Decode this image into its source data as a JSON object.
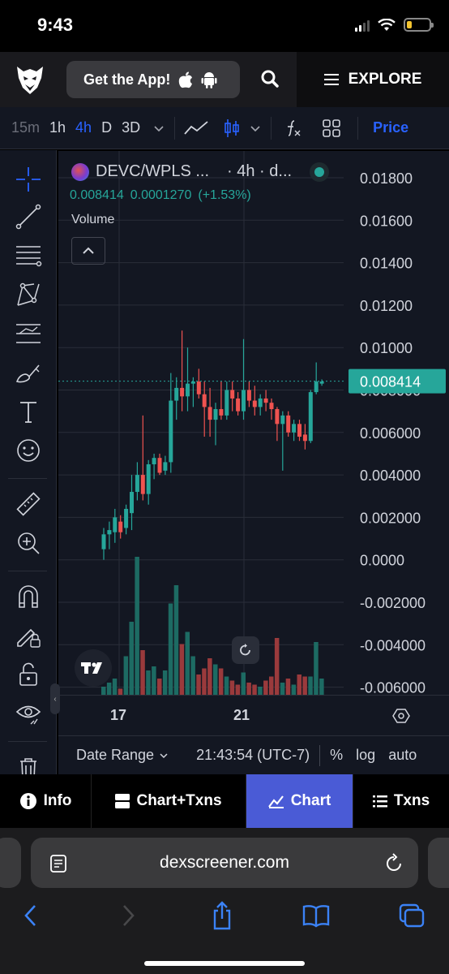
{
  "status_bar": {
    "time": "9:43"
  },
  "nav": {
    "get_app_label": "Get the App!",
    "explore_label": "EXPLORE"
  },
  "toolbar": {
    "timeframes": [
      "15m",
      "1h",
      "4h",
      "D",
      "3D"
    ],
    "active_timeframe": "4h",
    "price_tab": "Price"
  },
  "chart": {
    "pair": "DEVC/WPLS ...",
    "interval": "· 4h · d...",
    "price": "0.008414",
    "change": "0.0001270",
    "change_pct": "(+1.53%)",
    "volume_label": "Volume",
    "last_price_tag": "0.008414",
    "colors": {
      "up": "#26a69a",
      "down": "#ef5350",
      "accent": "#2962ff"
    }
  },
  "chart_data": {
    "type": "candlestick",
    "x_ticks": [
      "17",
      "21"
    ],
    "y_ticks": [
      "0.01800",
      "0.01600",
      "0.01400",
      "0.01200",
      "0.01000",
      "0.008000",
      "0.006000",
      "0.004000",
      "0.002000",
      "0.0000",
      "-0.002000",
      "-0.004000",
      "-0.006000"
    ],
    "ylim": [
      -0.006,
      0.018
    ],
    "last_price": 0.008414,
    "candles": [
      {
        "o": 0.0005,
        "h": 0.0015,
        "l": 0.0,
        "c": 0.0012
      },
      {
        "o": 0.0012,
        "h": 0.0018,
        "l": 0.0005,
        "c": 0.0014
      },
      {
        "o": 0.0013,
        "h": 0.0024,
        "l": 0.0008,
        "c": 0.002
      },
      {
        "o": 0.0018,
        "h": 0.0021,
        "l": 0.001,
        "c": 0.0013
      },
      {
        "o": 0.0015,
        "h": 0.0026,
        "l": 0.0012,
        "c": 0.0024
      },
      {
        "o": 0.0022,
        "h": 0.004,
        "l": 0.0014,
        "c": 0.0032
      },
      {
        "o": 0.0032,
        "h": 0.0046,
        "l": 0.0028,
        "c": 0.004
      },
      {
        "o": 0.004,
        "h": 0.0068,
        "l": 0.0028,
        "c": 0.0031
      },
      {
        "o": 0.0031,
        "h": 0.0047,
        "l": 0.0026,
        "c": 0.0045
      },
      {
        "o": 0.0045,
        "h": 0.005,
        "l": 0.0038,
        "c": 0.0048
      },
      {
        "o": 0.0048,
        "h": 0.005,
        "l": 0.004,
        "c": 0.0041
      },
      {
        "o": 0.0042,
        "h": 0.0049,
        "l": 0.004,
        "c": 0.0046
      },
      {
        "o": 0.0046,
        "h": 0.0088,
        "l": 0.0041,
        "c": 0.0075
      },
      {
        "o": 0.0075,
        "h": 0.0086,
        "l": 0.0066,
        "c": 0.0081
      },
      {
        "o": 0.0081,
        "h": 0.0108,
        "l": 0.007,
        "c": 0.0077
      },
      {
        "o": 0.0077,
        "h": 0.01,
        "l": 0.007,
        "c": 0.0083
      },
      {
        "o": 0.0083,
        "h": 0.0086,
        "l": 0.0072,
        "c": 0.0084
      },
      {
        "o": 0.0084,
        "h": 0.009,
        "l": 0.0076,
        "c": 0.0078
      },
      {
        "o": 0.0078,
        "h": 0.0084,
        "l": 0.0058,
        "c": 0.0072
      },
      {
        "o": 0.0072,
        "h": 0.0081,
        "l": 0.0058,
        "c": 0.0066
      },
      {
        "o": 0.0066,
        "h": 0.0074,
        "l": 0.0054,
        "c": 0.0071
      },
      {
        "o": 0.0071,
        "h": 0.0084,
        "l": 0.0066,
        "c": 0.0068
      },
      {
        "o": 0.0068,
        "h": 0.0084,
        "l": 0.0066,
        "c": 0.008
      },
      {
        "o": 0.008,
        "h": 0.0084,
        "l": 0.007,
        "c": 0.0076
      },
      {
        "o": 0.0076,
        "h": 0.0079,
        "l": 0.0068,
        "c": 0.007
      },
      {
        "o": 0.007,
        "h": 0.0104,
        "l": 0.0066,
        "c": 0.008
      },
      {
        "o": 0.008,
        "h": 0.0084,
        "l": 0.0072,
        "c": 0.0075
      },
      {
        "o": 0.0075,
        "h": 0.0082,
        "l": 0.0068,
        "c": 0.0072
      },
      {
        "o": 0.0072,
        "h": 0.0078,
        "l": 0.0068,
        "c": 0.0076
      },
      {
        "o": 0.0076,
        "h": 0.008,
        "l": 0.007,
        "c": 0.0074
      },
      {
        "o": 0.0074,
        "h": 0.0076,
        "l": 0.0066,
        "c": 0.0071
      },
      {
        "o": 0.0071,
        "h": 0.0072,
        "l": 0.0056,
        "c": 0.0064
      },
      {
        "o": 0.0064,
        "h": 0.007,
        "l": 0.0042,
        "c": 0.0068
      },
      {
        "o": 0.0068,
        "h": 0.007,
        "l": 0.0058,
        "c": 0.006
      },
      {
        "o": 0.006,
        "h": 0.0066,
        "l": 0.0056,
        "c": 0.0064
      },
      {
        "o": 0.0064,
        "h": 0.0066,
        "l": 0.0056,
        "c": 0.0058
      },
      {
        "o": 0.0059,
        "h": 0.0064,
        "l": 0.0052,
        "c": 0.0056
      },
      {
        "o": 0.0056,
        "h": 0.008,
        "l": 0.0055,
        "c": 0.0079
      },
      {
        "o": 0.0079,
        "h": 0.0093,
        "l": 0.0078,
        "c": 0.0084
      },
      {
        "o": 0.0083,
        "h": 0.0085,
        "l": 0.0082,
        "c": 0.0084
      }
    ],
    "volume": [
      8,
      12,
      16,
      6,
      38,
      72,
      136,
      44,
      24,
      28,
      16,
      24,
      90,
      108,
      50,
      62,
      38,
      20,
      26,
      36,
      30,
      26,
      18,
      14,
      10,
      22,
      12,
      10,
      8,
      14,
      18,
      56,
      12,
      16,
      10,
      20,
      18,
      18,
      52,
      16
    ]
  },
  "time_axis": {
    "labels": [
      "17",
      "21"
    ]
  },
  "footer": {
    "date_range": "Date Range",
    "time": "21:43:54 (UTC-7)",
    "percent": "%",
    "log": "log",
    "auto": "auto"
  },
  "tabs": [
    {
      "label": "Info",
      "icon": "info-icon"
    },
    {
      "label": "Chart+Txns",
      "icon": "split-icon"
    },
    {
      "label": "Chart",
      "icon": "chart-icon"
    },
    {
      "label": "Txns",
      "icon": "list-icon"
    }
  ],
  "active_tab": "Chart",
  "browser": {
    "url": "dexscreener.com"
  }
}
